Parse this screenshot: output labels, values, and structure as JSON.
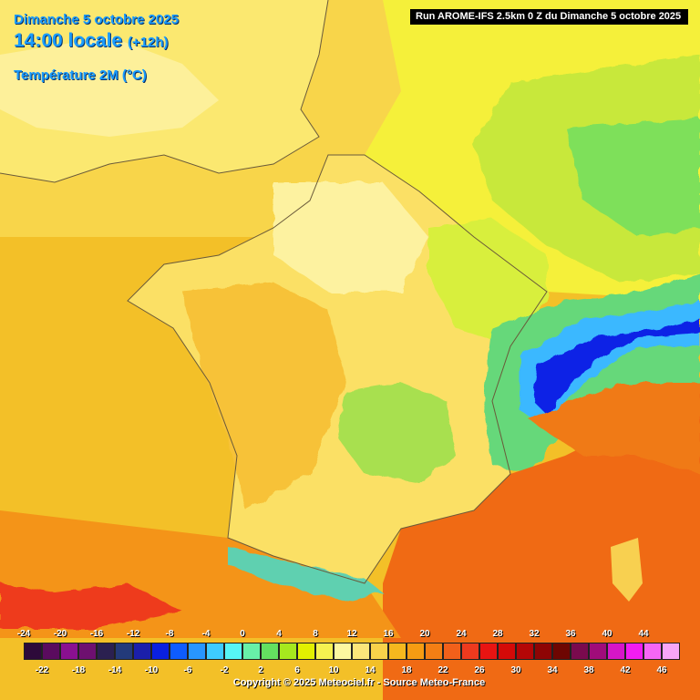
{
  "header": {
    "date": "Dimanche 5 octobre 2025",
    "time": "14:00 locale",
    "lead": "(+12h)",
    "parameter": "Température 2M (°C)"
  },
  "run_info": "Run AROME-IFS 2.5km 0 Z du Dimanche 5 octobre 2025",
  "legend": {
    "top_labels": [
      "-24",
      "-20",
      "-16",
      "-12",
      "-8",
      "-4",
      "0",
      "4",
      "8",
      "12",
      "16",
      "20",
      "24",
      "28",
      "32",
      "36",
      "40",
      "44"
    ],
    "bottom_labels": [
      "-22",
      "-18",
      "-14",
      "-10",
      "-6",
      "-2",
      "2",
      "6",
      "10",
      "14",
      "18",
      "22",
      "26",
      "30",
      "34",
      "38",
      "42",
      "46"
    ],
    "colors": [
      "#2d0a3a",
      "#5a0b5e",
      "#8a1090",
      "#6e1070",
      "#2b2050",
      "#233a7a",
      "#1b1faa",
      "#0a20e0",
      "#0e5cff",
      "#2896ff",
      "#3ecbff",
      "#56f5f5",
      "#68f0a8",
      "#64e060",
      "#a6e81e",
      "#e2f000",
      "#f6f250",
      "#fdf8a0",
      "#fce67a",
      "#f8d24a",
      "#f6b81e",
      "#f69c12",
      "#f47e14",
      "#f2601a",
      "#ee3a1e",
      "#e81412",
      "#d40a08",
      "#b40606",
      "#8e0404",
      "#6e0602",
      "#7a0a4e",
      "#a00c7a",
      "#d616c8",
      "#f21cf2",
      "#f666f6",
      "#f8a6f8"
    ]
  },
  "map": {
    "parameter_colors": {
      "sea_warm": "#f3c028",
      "land_warm": "#fbe36a",
      "alpine_cold": "#0a22e6",
      "mediterranean_hot": "#f06a14"
    },
    "temperature_range_c": [
      -24,
      46
    ]
  },
  "copyright": "Copyright © 2025 Meteociel.fr - Source Meteo-France"
}
